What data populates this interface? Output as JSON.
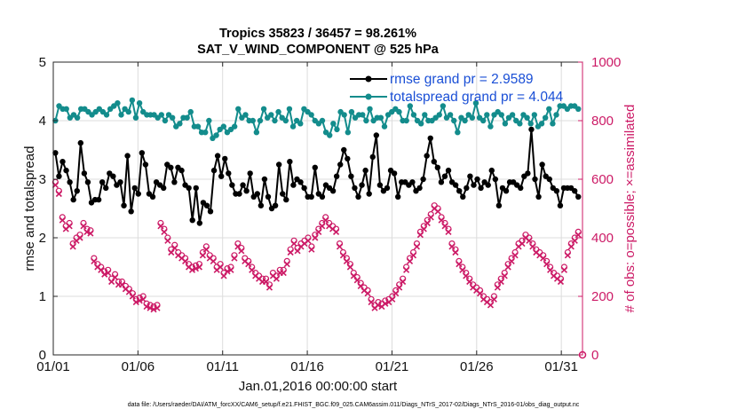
{
  "chart_data": {
    "type": "line",
    "title": "Tropics 35823 / 36457 = 98.261%",
    "subtitle": "SAT_V_WIND_COMPONENT @ 525 hPa",
    "xlabel": "Jan.01,2016 00:00:00 start",
    "ylabel": "rmse and totalspread",
    "y2label": "# of obs: o=possible; ×=assimilated",
    "footer": "data file: /Users/raeder/DAI/ATM_forcXX/CAM6_setup/f.e21.FHIST_BGC.f09_025.CAM6assim.011/Diags_NTrS_2017-02/Diags_NTrS_2016-01/obs_diag_output.nc",
    "x_tick_labels": [
      "01/01",
      "01/06",
      "01/11",
      "01/16",
      "01/21",
      "01/26",
      "01/31"
    ],
    "x_ticks_days": [
      0,
      5,
      10,
      15,
      20,
      25,
      30
    ],
    "xlim_days": [
      0,
      31.25
    ],
    "ylim": [
      0,
      5
    ],
    "y_ticks": [
      "0",
      "1",
      "2",
      "3",
      "4",
      "5"
    ],
    "y2lim": [
      0,
      1000
    ],
    "y2_ticks": [
      "0",
      "200",
      "400",
      "600",
      "800",
      "1000"
    ],
    "grid": true,
    "legend_position": "top-right",
    "series": [
      {
        "name": "rmse grand pr = 2.9589",
        "axis": "left",
        "color": "#000000",
        "values": [
          3.45,
          3.05,
          3.3,
          3.15,
          2.95,
          2.65,
          2.8,
          3.62,
          3.1,
          2.95,
          2.6,
          2.65,
          2.65,
          2.95,
          2.85,
          3.1,
          3.05,
          2.9,
          2.95,
          2.55,
          3.4,
          2.45,
          2.85,
          2.75,
          3.45,
          3.25,
          2.75,
          2.7,
          2.95,
          2.9,
          2.85,
          3.25,
          3.2,
          2.95,
          3.2,
          3.15,
          2.9,
          2.85,
          2.3,
          2.85,
          2.25,
          2.6,
          2.55,
          2.45,
          3.15,
          3.4,
          3.05,
          3.35,
          3.1,
          2.9,
          2.75,
          2.75,
          2.9,
          2.8,
          3.1,
          2.7,
          2.75,
          2.55,
          3.0,
          2.7,
          2.5,
          2.55,
          3.25,
          2.75,
          2.65,
          3.3,
          2.9,
          3.0,
          2.95,
          2.85,
          2.7,
          2.7,
          3.2,
          2.75,
          2.7,
          2.9,
          2.85,
          2.8,
          3.05,
          3.25,
          3.5,
          3.35,
          3.05,
          2.85,
          2.7,
          2.9,
          3.15,
          2.75,
          3.38,
          3.75,
          2.9,
          2.8,
          2.85,
          3.15,
          3.1,
          2.7,
          2.95,
          2.95,
          2.9,
          2.95,
          2.8,
          2.85,
          3.0,
          3.4,
          3.7,
          3.3,
          3.2,
          2.95,
          3.05,
          3.15,
          2.95,
          2.9,
          2.8,
          2.7,
          2.85,
          3.05,
          2.9,
          3.0,
          2.85,
          2.95,
          2.9,
          3.15,
          3.0,
          2.55,
          2.85,
          2.8,
          2.95,
          2.95,
          2.9,
          2.85,
          3.05,
          3.1,
          3.85,
          3.0,
          2.7,
          3.25,
          3.05,
          3.0,
          2.85,
          2.8,
          2.55,
          2.85,
          2.85,
          2.85,
          2.8,
          2.7
        ]
      },
      {
        "name": "totalspread grand pr = 4.044",
        "axis": "left",
        "color": "#138c8c",
        "values": [
          4.0,
          4.25,
          4.2,
          4.2,
          4.05,
          4.1,
          4.05,
          4.2,
          4.2,
          4.15,
          4.1,
          4.15,
          4.2,
          4.15,
          4.1,
          4.2,
          4.25,
          4.3,
          4.1,
          4.2,
          4.15,
          4.35,
          4.05,
          4.3,
          4.15,
          4.1,
          4.1,
          4.1,
          4.05,
          4.1,
          4.0,
          4.1,
          4.05,
          3.9,
          3.95,
          4.05,
          4.05,
          4.15,
          3.9,
          3.9,
          3.8,
          3.8,
          4.0,
          3.7,
          3.75,
          3.85,
          3.9,
          3.8,
          3.85,
          3.9,
          4.2,
          4.05,
          4.1,
          4.0,
          4.0,
          3.8,
          4.0,
          4.2,
          4.05,
          4.1,
          4.0,
          4.15,
          4.05,
          4.0,
          4.2,
          3.9,
          4.0,
          3.95,
          4.2,
          4.15,
          4.1,
          4.0,
          3.95,
          4.0,
          3.8,
          3.75,
          3.95,
          3.85,
          4.15,
          4.1,
          3.8,
          4.15,
          4.05,
          4.1,
          4.1,
          4.0,
          4.2,
          4.0,
          4.05,
          4.05,
          3.9,
          4.1,
          4.15,
          4.2,
          4.15,
          4.0,
          4.0,
          4.25,
          4.1,
          4.0,
          3.95,
          4.1,
          4.0,
          4.0,
          4.05,
          4.1,
          4.25,
          4.05,
          4.1,
          4.0,
          3.8,
          4.05,
          4.0,
          4.1,
          4.05,
          4.3,
          4.05,
          4.0,
          4.1,
          3.9,
          4.1,
          4.15,
          4.1,
          3.95,
          4.05,
          4.1,
          4.0,
          3.95,
          4.1,
          4.05,
          3.95,
          4.1,
          3.9,
          3.95,
          4.05,
          4.2,
          3.95,
          4.1,
          4.25,
          4.25,
          4.2,
          4.25,
          4.25,
          4.2
        ]
      },
      {
        "name": "possible",
        "axis": "right",
        "color": "#cc1a66",
        "marker": "circle",
        "values": [
          590,
          560,
          470,
          440,
          450,
          380,
          400,
          410,
          450,
          430,
          425,
          330,
          310,
          300,
          285,
          290,
          260,
          275,
          250,
          250,
          235,
          225,
          210,
          190,
          195,
          200,
          175,
          170,
          165,
          170,
          450,
          430,
          400,
          360,
          375,
          350,
          340,
          330,
          310,
          300,
          305,
          310,
          350,
          370,
          340,
          330,
          300,
          310,
          280,
          295,
          300,
          340,
          380,
          365,
          330,
          320,
          300,
          280,
          270,
          260,
          260,
          240,
          280,
          270,
          290,
          290,
          320,
          360,
          390,
          365,
          380,
          390,
          400,
          370,
          410,
          430,
          450,
          470,
          450,
          440,
          430,
          380,
          350,
          330,
          310,
          280,
          265,
          245,
          230,
          220,
          190,
          170,
          180,
          175,
          185,
          190,
          200,
          220,
          240,
          260,
          300,
          330,
          350,
          380,
          420,
          440,
          460,
          480,
          510,
          500,
          470,
          450,
          430,
          380,
          360,
          320,
          300,
          280,
          260,
          240,
          230,
          220,
          200,
          190,
          180,
          200,
          240,
          260,
          280,
          310,
          330,
          350,
          380,
          390,
          410,
          400,
          380,
          360,
          350,
          340,
          320,
          300,
          280,
          270,
          260,
          300,
          350,
          380,
          400,
          420
        ]
      },
      {
        "name": "assimilated",
        "axis": "right",
        "color": "#cc1a66",
        "marker": "x",
        "values": [
          580,
          550,
          460,
          430,
          440,
          370,
          390,
          400,
          440,
          420,
          415,
          320,
          300,
          290,
          275,
          280,
          250,
          265,
          240,
          240,
          225,
          215,
          200,
          180,
          185,
          190,
          165,
          160,
          155,
          160,
          440,
          420,
          390,
          350,
          365,
          340,
          330,
          320,
          300,
          290,
          295,
          300,
          340,
          360,
          330,
          320,
          290,
          300,
          270,
          285,
          290,
          330,
          370,
          355,
          320,
          310,
          290,
          270,
          260,
          250,
          250,
          230,
          270,
          260,
          280,
          280,
          310,
          350,
          380,
          355,
          370,
          380,
          390,
          360,
          400,
          420,
          440,
          460,
          440,
          430,
          420,
          370,
          340,
          320,
          300,
          270,
          255,
          235,
          220,
          210,
          180,
          160,
          170,
          165,
          175,
          180,
          190,
          210,
          230,
          250,
          290,
          320,
          340,
          370,
          410,
          430,
          450,
          470,
          500,
          490,
          460,
          440,
          420,
          370,
          350,
          310,
          290,
          270,
          250,
          230,
          220,
          210,
          190,
          180,
          170,
          190,
          230,
          250,
          270,
          300,
          320,
          340,
          370,
          380,
          400,
          390,
          370,
          350,
          340,
          330,
          310,
          290,
          270,
          260,
          250,
          290,
          340,
          370,
          390,
          410
        ]
      }
    ]
  }
}
